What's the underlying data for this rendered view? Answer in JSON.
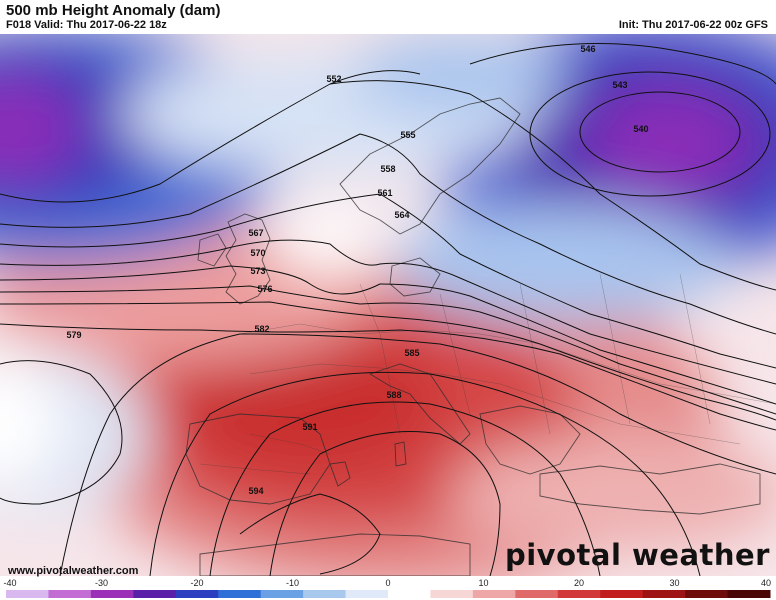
{
  "header": {
    "title": "500 mb Height Anomaly (dam)",
    "valid": "F018 Valid: Thu 2017-06-22 18z",
    "init": "Init: Thu 2017-06-22 00z GFS"
  },
  "footer": {
    "website": "www.pivotalweather.com",
    "brand": "pivotal weather"
  },
  "colorbar": {
    "labels": [
      "-40",
      "-30",
      "-20",
      "-10",
      "0",
      "10",
      "20",
      "30",
      "40"
    ],
    "min": -40,
    "max": 40,
    "colors": [
      "#d8b8ee",
      "#c26cd4",
      "#9b2fb8",
      "#5a1fa8",
      "#2b3fc0",
      "#2f6fd8",
      "#6aa0e4",
      "#a8c8ee",
      "#dfe9f7",
      "#ffffff",
      "#f7d6d6",
      "#eea6a6",
      "#e06a6a",
      "#d23a3a",
      "#c21e1e",
      "#9e1414",
      "#6e0c0c",
      "#4a0606"
    ]
  },
  "contours": [
    {
      "label": "540",
      "color": "#111111"
    },
    {
      "label": "543",
      "color": "#111111"
    },
    {
      "label": "546",
      "color": "#111111"
    },
    {
      "label": "552",
      "color": "#111111"
    },
    {
      "label": "555",
      "color": "#111111"
    },
    {
      "label": "558",
      "color": "#111111"
    },
    {
      "label": "561",
      "color": "#111111"
    },
    {
      "label": "564",
      "color": "#111111"
    },
    {
      "label": "567",
      "color": "#111111"
    },
    {
      "label": "570",
      "color": "#111111"
    },
    {
      "label": "573",
      "color": "#111111"
    },
    {
      "label": "576",
      "color": "#111111"
    },
    {
      "label": "579",
      "color": "#111111"
    },
    {
      "label": "582",
      "color": "#111111"
    },
    {
      "label": "585",
      "color": "#111111"
    },
    {
      "label": "588",
      "color": "#111111"
    },
    {
      "label": "591",
      "color": "#111111"
    },
    {
      "label": "594",
      "color": "#111111"
    }
  ]
}
